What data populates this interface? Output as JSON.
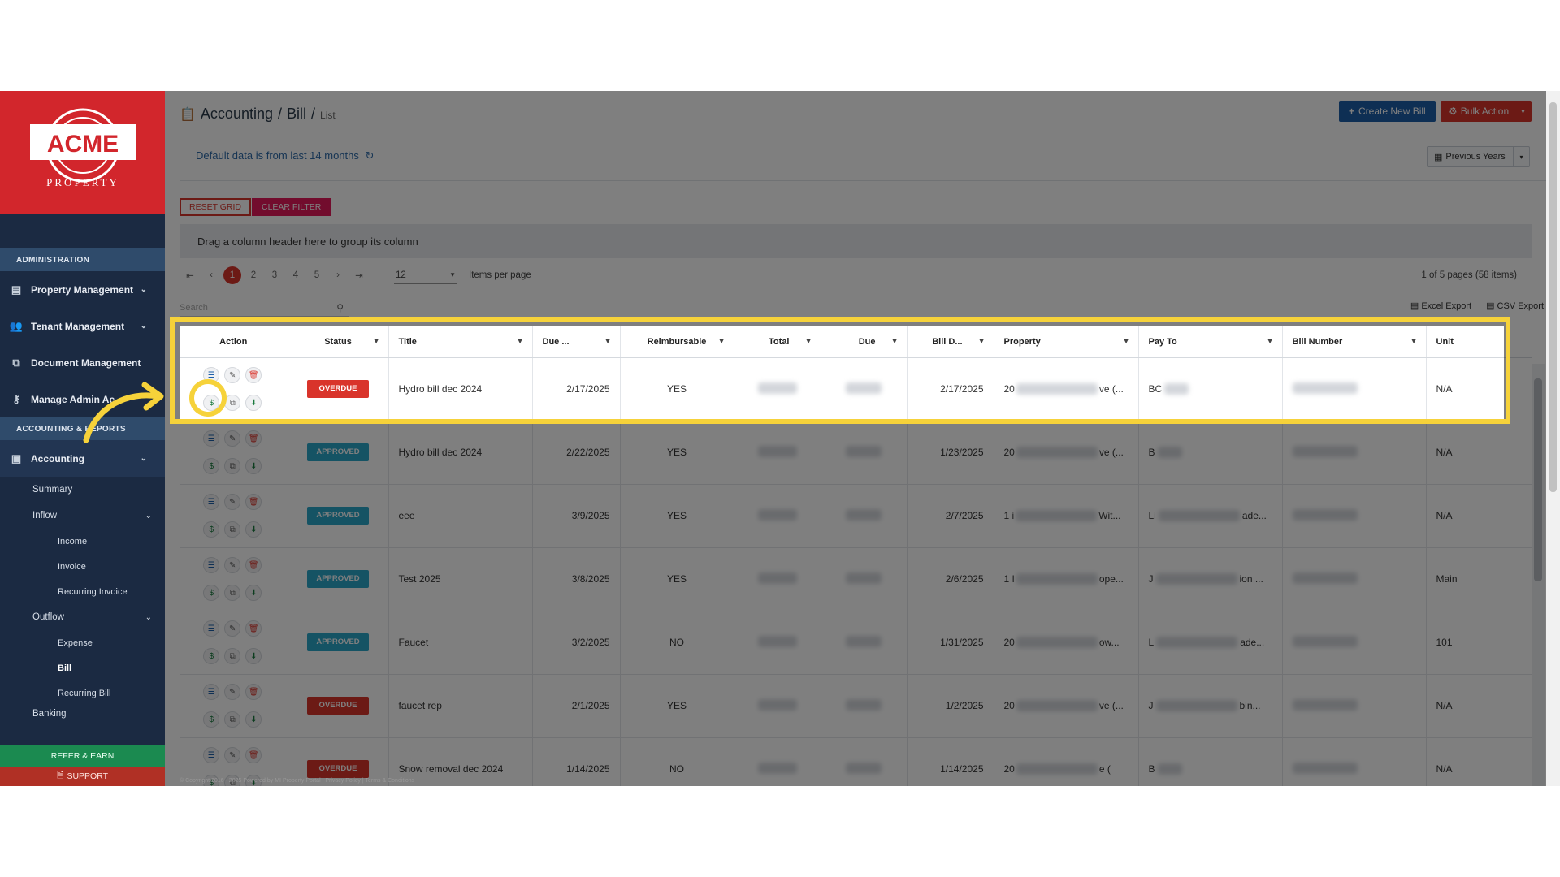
{
  "sidebar": {
    "logo_text": "ACME",
    "logo_sub": "PROPERTY",
    "admin_head": "ADMINISTRATION",
    "items": [
      {
        "label": "Property Management",
        "icon": "building-icon"
      },
      {
        "label": "Tenant Management",
        "icon": "users-icon"
      },
      {
        "label": "Document Management",
        "icon": "documents-icon"
      },
      {
        "label": "Manage Admin Ac",
        "icon": "key-icon"
      }
    ],
    "accounting_head": "ACCOUNTING & REPORTS",
    "accounting": "Accounting",
    "summary": "Summary",
    "inflow": "Inflow",
    "income": "Income",
    "invoice": "Invoice",
    "recurring_invoice": "Recurring Invoice",
    "outflow": "Outflow",
    "expense": "Expense",
    "bill": "Bill",
    "recurring_bill": "Recurring Bill",
    "banking": "Banking",
    "refer": "REFER & EARN",
    "support": "SUPPORT"
  },
  "header": {
    "crumb1": "Accounting",
    "sep": "/",
    "crumb2": "Bill",
    "crumb3": "List",
    "create": "Create New Bill",
    "bulk": "Bulk Action"
  },
  "info": "Default data is from last 14 months",
  "prev_years": "Previous Years",
  "reset": "RESET GRID",
  "clear": "CLEAR FILTER",
  "grouping": "Drag a column header here to group its column",
  "pager": {
    "pages": [
      "1",
      "2",
      "3",
      "4",
      "5"
    ],
    "per_page": "12",
    "per_label": "Items per page",
    "info": "1 of 5 pages (58 items)"
  },
  "search_placeholder": "Search",
  "exports": {
    "excel": "Excel Export",
    "csv": "CSV Export"
  },
  "columns": [
    "Action",
    "Status",
    "Title",
    "Due ...",
    "Reimbursable",
    "Total",
    "Due",
    "Bill D...",
    "Property",
    "Pay To",
    "Bill Number",
    "Unit"
  ],
  "rows": [
    {
      "status": "OVERDUE",
      "status_type": "ov",
      "title": "Hydro bill dec 2024",
      "due_date": "2/17/2025",
      "reimb": "YES",
      "bill_date": "2/17/2025",
      "property": "20",
      "property_end": "ve (...",
      "payto": "BC",
      "payto_end": "",
      "unit": "N/A"
    },
    {
      "status": "APPROVED",
      "status_type": "ap",
      "title": "Hydro bill dec 2024",
      "due_date": "2/22/2025",
      "reimb": "YES",
      "bill_date": "1/23/2025",
      "property": "20",
      "property_end": "ve (...",
      "payto": "B",
      "payto_end": "",
      "unit": "N/A"
    },
    {
      "status": "APPROVED",
      "status_type": "ap",
      "title": "eee",
      "due_date": "3/9/2025",
      "reimb": "YES",
      "bill_date": "2/7/2025",
      "property": "1 i",
      "property_end": "Wit...",
      "payto": "Li",
      "payto_end": "ade...",
      "unit": "N/A"
    },
    {
      "status": "APPROVED",
      "status_type": "ap",
      "title": "Test 2025",
      "due_date": "3/8/2025",
      "reimb": "YES",
      "bill_date": "2/6/2025",
      "property": "1 I",
      "property_end": "ope...",
      "payto": "J",
      "payto_end": "ion ...",
      "unit": "Main"
    },
    {
      "status": "APPROVED",
      "status_type": "ap",
      "title": "Faucet",
      "due_date": "3/2/2025",
      "reimb": "NO",
      "bill_date": "1/31/2025",
      "property": "20",
      "property_end": "ow...",
      "payto": "L",
      "payto_end": "ade...",
      "unit": "101"
    },
    {
      "status": "OVERDUE",
      "status_type": "ov",
      "title": "faucet rep",
      "due_date": "2/1/2025",
      "reimb": "YES",
      "bill_date": "1/2/2025",
      "property": "20",
      "property_end": "ve (...",
      "payto": "J",
      "payto_end": "bin...",
      "unit": "N/A"
    },
    {
      "status": "OVERDUE",
      "status_type": "ov",
      "title": "Snow removal dec 2024",
      "due_date": "1/14/2025",
      "reimb": "NO",
      "bill_date": "1/14/2025",
      "property": "20",
      "property_end": "e (",
      "payto": "B",
      "payto_end": "",
      "unit": "N/A"
    }
  ],
  "footer": "© Copyright 2016 - 2025 Powered by MI Property Portal | Privacy Policy | Terms & Conditions",
  "colors": {
    "accent": "#d9342b",
    "approved": "#2ba6c9",
    "highlight": "#f6d23a",
    "primary": "#1d5fa8"
  }
}
